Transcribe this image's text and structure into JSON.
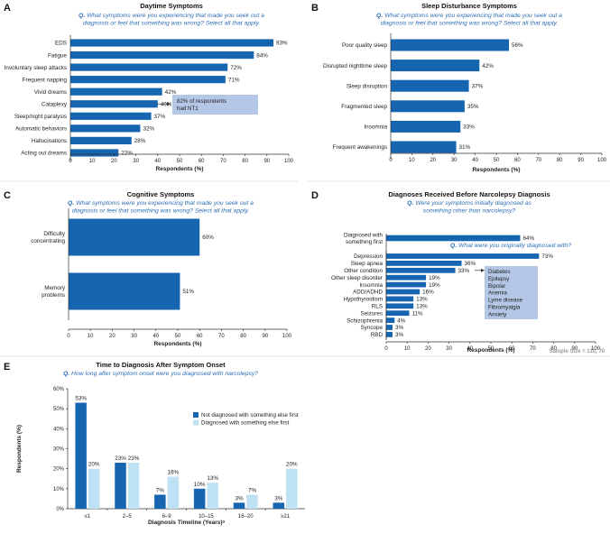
{
  "colors": {
    "dark_blue": "#1565b0",
    "light_blue": "#bfe1f4",
    "callout_box": "#b4c7e7",
    "question": "#2e6fb6",
    "sample_gray": "#9a9a9a"
  },
  "chart_data": [
    {
      "id": "A",
      "type": "bar",
      "orientation": "horizontal",
      "panel_letter": "A",
      "title": "Daytime Symptoms",
      "question_lines": [
        "What symptoms were you experiencing that made you seek out a",
        "diagnosis or feel that something was wrong? Select all that apply."
      ],
      "categories": [
        "EDS",
        "Fatigue",
        "Involuntary sleep attacks",
        "Frequent napping",
        "Vivid dreams",
        "Cataplexy",
        "Sleep/night paralysis",
        "Automatic behaviors",
        "Hallucinations",
        "Acting out dreams"
      ],
      "values": [
        93,
        84,
        72,
        71,
        42,
        40,
        37,
        32,
        28,
        22
      ],
      "value_labels": [
        "93%",
        "84%",
        "72%",
        "71%",
        "42%",
        "40%",
        "37%",
        "32%",
        "28%",
        "22%"
      ],
      "xlabel": "Respondents (%)",
      "xlim": [
        0,
        100
      ],
      "xticks": [
        "0",
        "10",
        "20",
        "30",
        "40",
        "50",
        "60",
        "70",
        "80",
        "90",
        "100"
      ],
      "annotation_lines": [
        "82% of respondents",
        "had NT1"
      ]
    },
    {
      "id": "B",
      "type": "bar",
      "orientation": "horizontal",
      "panel_letter": "B",
      "title": "Sleep Disturbance Symptoms",
      "question_lines": [
        "What symptoms were you experiencing that made you seek out a",
        "diagnosis or feel that something was wrong? Select all that apply."
      ],
      "categories": [
        "Poor quality sleep",
        "Disrupted nighttime sleep",
        "Sleep disruption",
        "Fragmented sleep",
        "Insomnia",
        "Frequent awakenings"
      ],
      "values": [
        56,
        42,
        37,
        35,
        33,
        31
      ],
      "value_labels": [
        "56%",
        "42%",
        "37%",
        "35%",
        "33%",
        "31%"
      ],
      "xlabel": "Respondents (%)",
      "xlim": [
        0,
        100
      ],
      "xticks": [
        "0",
        "10",
        "20",
        "30",
        "40",
        "50",
        "60",
        "70",
        "80",
        "90",
        "100"
      ]
    },
    {
      "id": "C",
      "type": "bar",
      "orientation": "horizontal",
      "panel_letter": "C",
      "title": "Cognitive Symptoms",
      "question_lines": [
        "What symptoms were you experiencing that made you seek out a",
        "diagnosis or feel that something was wrong? Select all that apply."
      ],
      "categories": [
        "Difficulty concentrating",
        "Memory problems"
      ],
      "category_lines": [
        [
          "Difficulty",
          "concentrating"
        ],
        [
          "Memory",
          "problems"
        ]
      ],
      "values": [
        60,
        51
      ],
      "value_labels": [
        "60%",
        "51%"
      ],
      "xlabel": "Respondents (%)",
      "xlim": [
        0,
        100
      ],
      "xticks": [
        "0",
        "10",
        "20",
        "30",
        "40",
        "50",
        "60",
        "70",
        "80",
        "90",
        "100"
      ]
    },
    {
      "id": "D",
      "type": "bar",
      "orientation": "horizontal",
      "panel_letter": "D",
      "title": "Diagnoses Received Before Narcolepsy Diagnosis",
      "question_lines": [
        "Were your symptoms initially diagnosed as",
        "something other than narcolepsy?"
      ],
      "first_category_lines": [
        "Diagnosed with",
        "something first"
      ],
      "first_value": 64,
      "first_value_label": "64%",
      "question2": "What were you originally diagnosed with?",
      "categories": [
        "Depression",
        "Sleep apnea",
        "Other condition",
        "Other sleep disorder",
        "Insomnia",
        "ADD/ADHD",
        "Hypothyroidism",
        "RLS",
        "Seizures",
        "Schizophrenia",
        "Syncope",
        "RBD"
      ],
      "values": [
        73,
        36,
        33,
        19,
        19,
        16,
        13,
        13,
        11,
        4,
        3,
        3
      ],
      "value_labels": [
        "73%",
        "36%",
        "33%",
        "19%",
        "19%",
        "16%",
        "13%",
        "13%",
        "11%",
        "4%",
        "3%",
        "3%"
      ],
      "other_conditions": [
        "Diabetes",
        "Epilepsy",
        "Bipolar",
        "Anemia",
        "Lyme disease",
        "Fibromyalgia",
        "Anxiety"
      ],
      "xlabel": "Respondents (%)",
      "xlim": [
        0,
        100
      ],
      "xticks": [
        "0",
        "10",
        "20",
        "30",
        "40",
        "50",
        "60",
        "70",
        "80",
        "90",
        "100"
      ],
      "sample_size": "Sample Size = 110, 70"
    },
    {
      "id": "E",
      "type": "bar",
      "orientation": "vertical",
      "panel_letter": "E",
      "title": "Time to Diagnosis After Symptom Onset",
      "question_lines": [
        "How long after symptom onset were you diagnosed with narcolepsy?"
      ],
      "categories": [
        "≤1",
        "2–5",
        "6–9",
        "10–15",
        "16–20",
        "≥21"
      ],
      "series": [
        {
          "name": "Not diagnosed with something else first",
          "values": [
            53,
            23,
            7,
            10,
            3,
            3
          ],
          "value_labels": [
            "53%",
            "23%",
            "7%",
            "10%",
            "3%",
            "3%"
          ],
          "color": "#1565b0"
        },
        {
          "name": "Diagnosed with something else first",
          "values": [
            20,
            23,
            16,
            13,
            7,
            20
          ],
          "value_labels": [
            "20%",
            "23%",
            "16%",
            "13%",
            "7%",
            "20%"
          ],
          "color": "#bfe1f4"
        }
      ],
      "xlabel": "Diagnosis Timeline (Years)ᵃ",
      "ylabel": "Respondents (%)",
      "ylim": [
        0,
        60
      ],
      "yticks": [
        "0%",
        "10%",
        "20%",
        "30%",
        "40%",
        "50%",
        "60%"
      ],
      "legend": "top-right"
    }
  ],
  "q_prefix": "Q."
}
